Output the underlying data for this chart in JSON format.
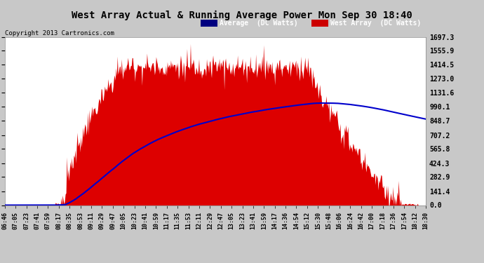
{
  "title": "West Array Actual & Running Average Power Mon Sep 30 18:40",
  "copyright": "Copyright 2013 Cartronics.com",
  "legend_labels": [
    "Average  (DC Watts)",
    "West Array  (DC Watts)"
  ],
  "legend_bg_colors": [
    "#000080",
    "#cc0000"
  ],
  "y_ticks": [
    0.0,
    141.4,
    282.9,
    424.3,
    565.8,
    707.2,
    848.7,
    990.1,
    1131.6,
    1273.0,
    1414.5,
    1555.9,
    1697.3
  ],
  "y_max": 1697.3,
  "x_tick_labels": [
    "06:46",
    "07:05",
    "07:23",
    "07:41",
    "07:59",
    "08:17",
    "08:35",
    "08:53",
    "09:11",
    "09:29",
    "09:47",
    "10:05",
    "10:23",
    "10:41",
    "10:59",
    "11:17",
    "11:35",
    "11:53",
    "12:11",
    "12:29",
    "12:47",
    "13:05",
    "13:23",
    "13:41",
    "13:59",
    "14:17",
    "14:36",
    "14:54",
    "15:12",
    "15:30",
    "15:48",
    "16:06",
    "16:24",
    "16:42",
    "17:00",
    "17:18",
    "17:36",
    "17:54",
    "18:12",
    "18:30"
  ],
  "fig_bg_color": "#c8c8c8",
  "plot_bg_color": "#ffffff",
  "grid_color": "#ffffff",
  "title_color": "#000000",
  "tick_color": "#000000",
  "bar_color": "#dd0000",
  "avg_color": "#0000cc",
  "copyright_color": "#000000"
}
